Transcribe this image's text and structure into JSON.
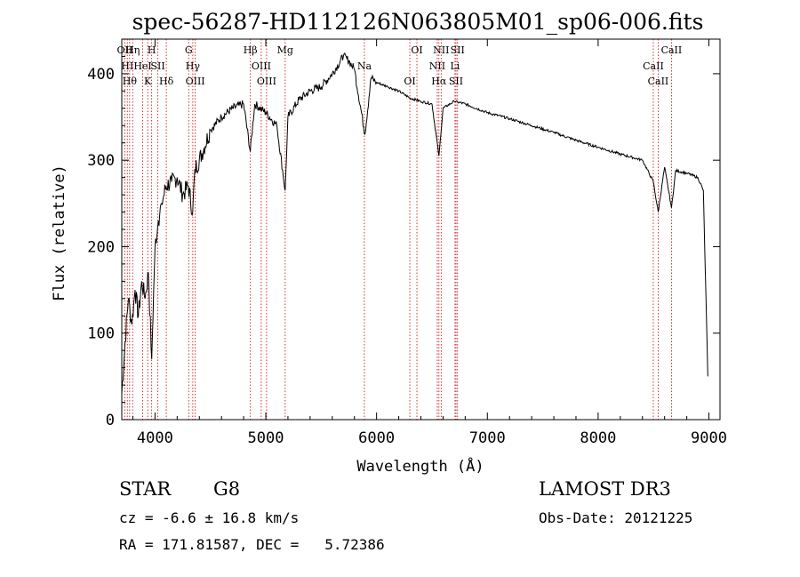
{
  "chart_data": {
    "type": "line",
    "title": "spec-56287-HD112126N063805M01_sp06-006.fits",
    "xlabel": "Wavelength (Å)",
    "ylabel": "Flux (relative)",
    "xlim": [
      3700,
      9100
    ],
    "ylim": [
      0,
      440
    ],
    "x_ticks": [
      4000,
      5000,
      6000,
      7000,
      8000,
      9000
    ],
    "y_ticks": [
      0,
      100,
      200,
      300,
      400
    ],
    "grid": false,
    "line_color": "#000000",
    "marker_color": "#cc0000",
    "series": [
      {
        "x": [
          3700,
          3730,
          3760,
          3790,
          3820,
          3850,
          3880,
          3910,
          3940,
          3970,
          4000,
          4030,
          4060,
          4100,
          4150,
          4200,
          4250,
          4300,
          4340,
          4360,
          4400,
          4500,
          4600,
          4700,
          4800,
          4860,
          4900,
          5000,
          5100,
          5175,
          5200,
          5300,
          5400,
          5500,
          5600,
          5700,
          5750,
          5800,
          5895,
          5950,
          6000,
          6100,
          6200,
          6300,
          6400,
          6500,
          6563,
          6600,
          6700,
          6800,
          7000,
          7200,
          7400,
          7600,
          7800,
          8000,
          8200,
          8400,
          8498,
          8542,
          8600,
          8662,
          8700,
          8800,
          8900,
          8950,
          8990
        ],
        "y": [
          30,
          90,
          140,
          110,
          150,
          120,
          160,
          140,
          170,
          70,
          200,
          230,
          250,
          270,
          275,
          280,
          260,
          270,
          240,
          290,
          300,
          335,
          350,
          360,
          365,
          310,
          365,
          355,
          340,
          265,
          350,
          370,
          380,
          385,
          400,
          420,
          415,
          405,
          330,
          395,
          390,
          385,
          380,
          372,
          368,
          365,
          305,
          360,
          368,
          365,
          355,
          348,
          340,
          332,
          323,
          315,
          307,
          300,
          275,
          240,
          292,
          245,
          288,
          285,
          280,
          265,
          50
        ]
      }
    ],
    "line_markers": [
      {
        "x": 3727,
        "label": "OII"
      },
      {
        "x": 3750,
        "label": "HI"
      },
      {
        "x": 3771,
        "label": "Hθ"
      },
      {
        "x": 3798,
        "label": "Hη"
      },
      {
        "x": 3889,
        "label": "HeI"
      },
      {
        "x": 3934,
        "label": "K"
      },
      {
        "x": 3970,
        "label": "H"
      },
      {
        "x": 4026,
        "label": "SII"
      },
      {
        "x": 4102,
        "label": "Hδ"
      },
      {
        "x": 4304,
        "label": "G"
      },
      {
        "x": 4341,
        "label": "Hγ"
      },
      {
        "x": 4363,
        "label": "OIII"
      },
      {
        "x": 4861,
        "label": "Hβ"
      },
      {
        "x": 4959,
        "label": "OIII"
      },
      {
        "x": 5007,
        "label": "OIII"
      },
      {
        "x": 5175,
        "label": "Mg"
      },
      {
        "x": 5890,
        "label": "Na"
      },
      {
        "x": 6300,
        "label": "OI"
      },
      {
        "x": 6364,
        "label": "OI"
      },
      {
        "x": 6548,
        "label": "NII"
      },
      {
        "x": 6563,
        "label": "Hα"
      },
      {
        "x": 6583,
        "label": "NII"
      },
      {
        "x": 6708,
        "label": "Li"
      },
      {
        "x": 6717,
        "label": "SII"
      },
      {
        "x": 6731,
        "label": "SII"
      },
      {
        "x": 8498,
        "label": "CaII"
      },
      {
        "x": 8542,
        "label": "CaII"
      },
      {
        "x": 8662,
        "label": "CaII"
      }
    ]
  },
  "info": {
    "object_class": "STAR",
    "subclass": "G8",
    "survey": "LAMOST DR3",
    "redshift_line": "cz = -6.6 ± 16.8 km/s",
    "obs_date": "Obs-Date: 20121225",
    "coords": "RA = 171.81587, DEC =   5.72386"
  }
}
